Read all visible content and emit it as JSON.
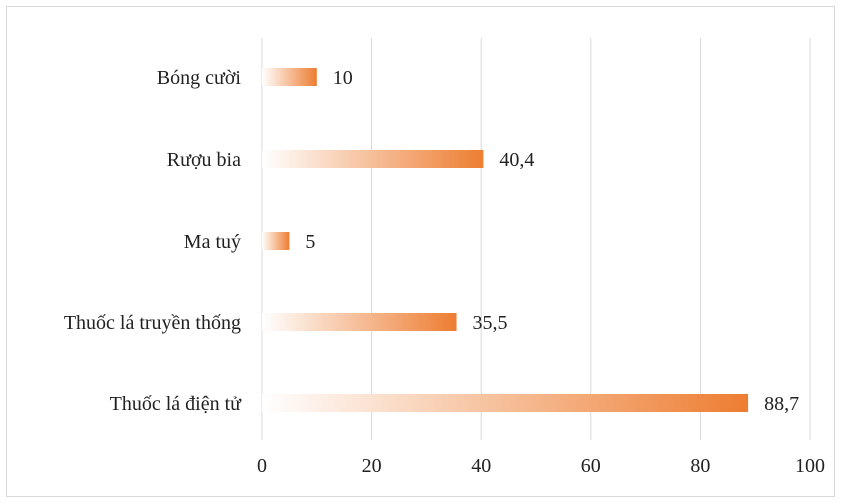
{
  "chart_data": {
    "type": "bar",
    "orientation": "horizontal",
    "categories": [
      "Bóng cười",
      "Rượu bia",
      "Ma tuý",
      "Thuốc lá truyền thống",
      "Thuốc lá điện tử"
    ],
    "values": [
      10,
      40.4,
      5,
      35.5,
      88.7
    ],
    "value_labels": [
      "10",
      "40,4",
      "5",
      "35,5",
      "88,7"
    ],
    "xlim": [
      0,
      100
    ],
    "x_ticks": [
      0,
      20,
      40,
      60,
      80,
      100
    ],
    "x_tick_labels": [
      "0",
      "20",
      "40",
      "60",
      "80",
      "100"
    ],
    "title": "",
    "xlabel": "",
    "ylabel": "",
    "grid": "vertical",
    "legend": "none",
    "bar_fill": "gradient from white (left) to orange",
    "colors": {
      "bar_start": "#ffffff",
      "bar_end": "#ed7d31",
      "gridline": "#d9d9d9",
      "border": "#d9d9d9",
      "text": "#222222"
    }
  }
}
